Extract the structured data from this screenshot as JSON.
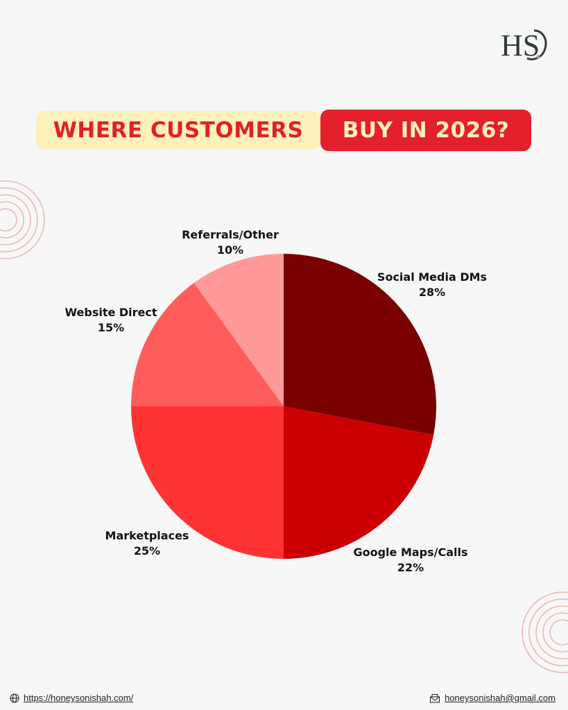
{
  "brand": {
    "logo_text": "HS"
  },
  "title": {
    "part1": "WHERE CUSTOMERS",
    "part2": "BUY IN 2026?"
  },
  "colors": {
    "background": "#f7f7f7",
    "title_left_bg": "#fdf0b8",
    "title_left_text": "#e0202c",
    "title_right_bg": "#e3202c",
    "title_right_text": "#fdf0b8",
    "deco_rings": "#e8b8b8"
  },
  "chart_data": {
    "type": "pie",
    "start": "12 o'clock, clockwise",
    "slices": [
      {
        "label": "Social Media DMs",
        "value": 28,
        "value_label": "28%",
        "color": "#7a0000"
      },
      {
        "label": "Google Maps/Calls",
        "value": 22,
        "value_label": "22%",
        "color": "#cc0000"
      },
      {
        "label": "Marketplaces",
        "value": 25,
        "value_label": "25%",
        "color": "#ff3333"
      },
      {
        "label": "Website Direct",
        "value": 15,
        "value_label": "15%",
        "color": "#ff5c5c"
      },
      {
        "label": "Referrals/Other",
        "value": 10,
        "value_label": "10%",
        "color": "#ff9999"
      }
    ]
  },
  "footer": {
    "website": "https://honeysonishah.com/",
    "email": "honeysonishah@gmail.com",
    "website_icon": "globe-icon",
    "email_icon": "mail-icon"
  }
}
